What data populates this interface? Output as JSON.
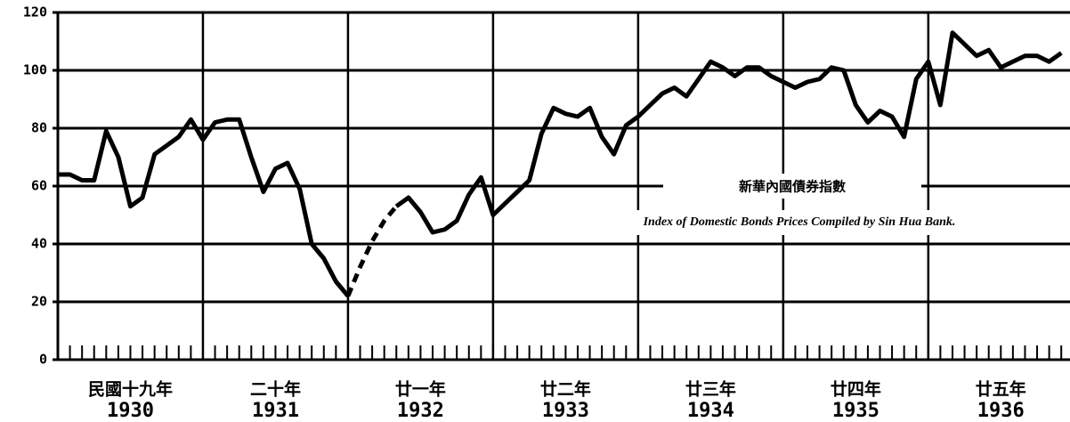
{
  "chart_data": {
    "type": "line",
    "annotation_zh": "新華內國債券指數",
    "annotation_en": "Index of Domestic Bonds Prices Compiled by Sin Hua Bank.",
    "x": [
      1930,
      1930.083,
      1930.167,
      1930.25,
      1930.333,
      1930.417,
      1930.5,
      1930.583,
      1930.667,
      1930.75,
      1930.833,
      1930.917,
      1931,
      1931.083,
      1931.167,
      1931.25,
      1931.333,
      1931.417,
      1931.5,
      1931.583,
      1931.667,
      1931.75,
      1931.833,
      1931.917,
      1932,
      1932.083,
      1932.167,
      1932.25,
      1932.333,
      1932.417,
      1932.5,
      1932.583,
      1932.667,
      1932.75,
      1932.833,
      1932.917,
      1933,
      1933.083,
      1933.167,
      1933.25,
      1933.333,
      1933.417,
      1933.5,
      1933.583,
      1933.667,
      1933.75,
      1933.833,
      1933.917,
      1934,
      1934.083,
      1934.167,
      1934.25,
      1934.333,
      1934.417,
      1934.5,
      1934.583,
      1934.667,
      1934.75,
      1934.833,
      1934.917,
      1935,
      1935.083,
      1935.167,
      1935.25,
      1935.333,
      1935.417,
      1935.5,
      1935.583,
      1935.667,
      1935.75,
      1935.833,
      1935.917,
      1936,
      1936.083,
      1936.167,
      1936.25,
      1936.333,
      1936.417,
      1936.5,
      1936.583,
      1936.667,
      1936.75,
      1936.833,
      1936.917
    ],
    "series": [
      {
        "color": "#000000",
        "style": "solid",
        "values": [
          64,
          64,
          62,
          62,
          79,
          70,
          53,
          56,
          71,
          74,
          77,
          83,
          76,
          82,
          83,
          83,
          70,
          58,
          66,
          68,
          59,
          40,
          35,
          27,
          22,
          null,
          null,
          null,
          53,
          56,
          51,
          44,
          45,
          48,
          57,
          63,
          50,
          54,
          58,
          62,
          78,
          87,
          85,
          84,
          87,
          77,
          71,
          81,
          84,
          88,
          92,
          94,
          91,
          97,
          103,
          101,
          98,
          101,
          101,
          98,
          96,
          94,
          96,
          97,
          101,
          100,
          88,
          82,
          86,
          84,
          77,
          97,
          103,
          88,
          113,
          109,
          105,
          107,
          101,
          103,
          105,
          105,
          103,
          106
        ]
      },
      {
        "color": "#000000",
        "style": "dashed",
        "values": [
          null,
          null,
          null,
          null,
          null,
          null,
          null,
          null,
          null,
          null,
          null,
          null,
          null,
          null,
          null,
          null,
          null,
          null,
          null,
          null,
          null,
          null,
          null,
          null,
          22,
          32,
          41,
          48,
          53,
          null,
          null,
          null,
          null,
          null,
          null,
          null,
          null,
          null,
          null,
          null,
          null,
          null,
          null,
          null,
          null,
          null,
          null,
          null,
          null,
          null,
          null,
          null,
          null,
          null,
          null,
          null,
          null,
          null,
          null,
          null,
          null,
          null,
          null,
          null,
          null,
          null,
          null,
          null,
          null,
          null,
          null,
          null,
          null,
          null,
          null,
          null,
          null,
          null,
          null,
          null,
          null,
          null,
          null,
          null
        ]
      }
    ],
    "xlim": [
      1930,
      1936.94
    ],
    "xticks": [
      1931,
      1932,
      1933,
      1934,
      1935,
      1936
    ],
    "ylim": [
      0,
      120
    ],
    "yticks": [
      0,
      20,
      40,
      60,
      80,
      100,
      120
    ],
    "grid": true,
    "year_labels": [
      {
        "zh": "民國十九年",
        "year": 1930
      },
      {
        "zh": "二十年",
        "year": 1931
      },
      {
        "zh": "廿一年",
        "year": 1932
      },
      {
        "zh": "廿二年",
        "year": 1933
      },
      {
        "zh": "廿三年",
        "year": 1934
      },
      {
        "zh": "廿四年",
        "year": 1935
      },
      {
        "zh": "廿五年",
        "year": 1936
      }
    ]
  }
}
